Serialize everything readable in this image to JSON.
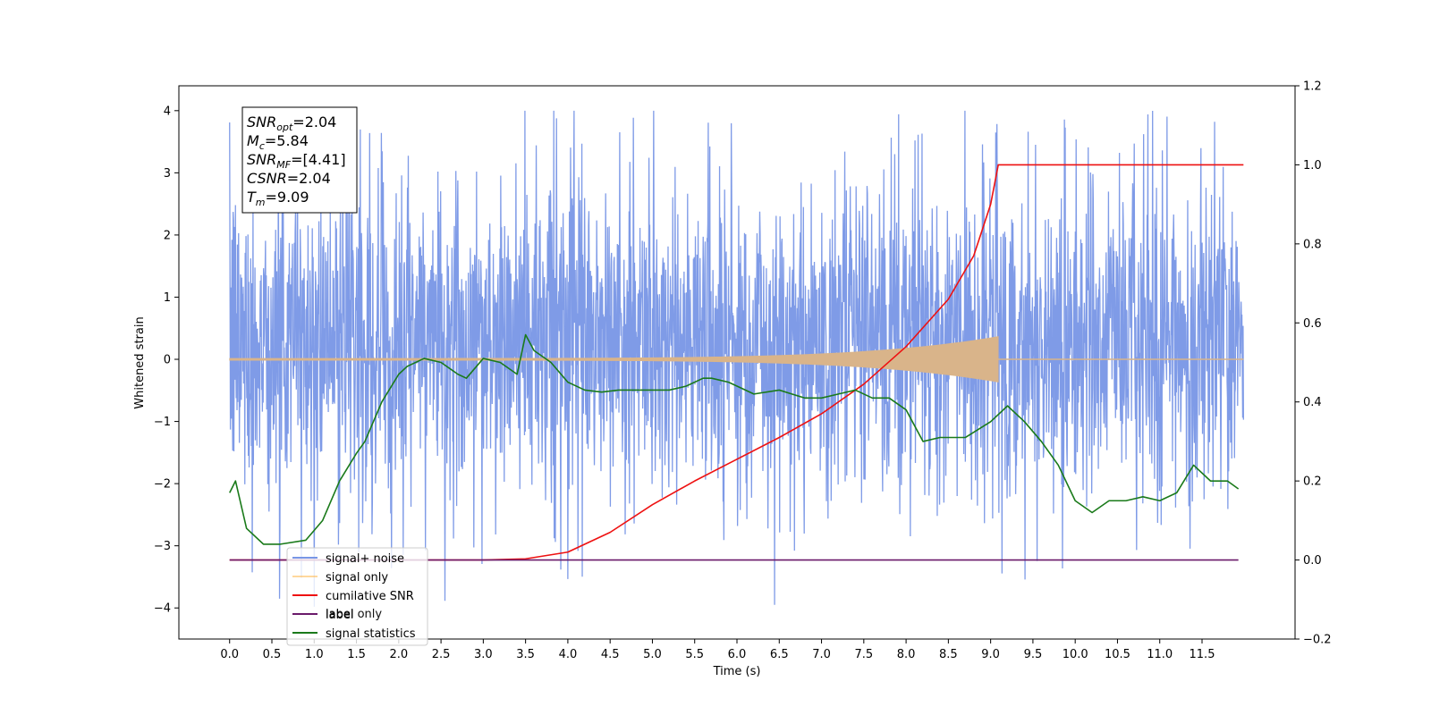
{
  "chart_data": {
    "type": "line",
    "title": "",
    "xlabel": "Time (s)",
    "ylabel_left": "Whitened strain",
    "ylabel_right": "",
    "xlim": [
      -0.6,
      12.6
    ],
    "ylim_left": [
      -4.5,
      4.4
    ],
    "ylim_right": [
      -0.2,
      1.2
    ],
    "x_ticks": [
      "0.0",
      "0.5",
      "1.0",
      "1.5",
      "2.0",
      "2.5",
      "3.0",
      "3.5",
      "4.0",
      "4.5",
      "5.0",
      "5.5",
      "6.0",
      "6.5",
      "7.0",
      "7.5",
      "8.0",
      "8.5",
      "9.0",
      "9.5",
      "10.0",
      "10.5",
      "11.0",
      "11.5"
    ],
    "y_left_ticks": [
      "4",
      "3",
      "2",
      "1",
      "0",
      "−1",
      "−2",
      "−3",
      "−4"
    ],
    "y_right_ticks": [
      "1.2",
      "1.0",
      "0.8",
      "0.6",
      "0.4",
      "0.2",
      "0.0",
      "−0.2"
    ],
    "grid": false,
    "legend_placement": "lower-left",
    "annotation": {
      "lines": [
        {
          "sym": "SNR",
          "sub": "opt",
          "value": "=2.04"
        },
        {
          "sym": "M",
          "sub": "c",
          "value": "=5.84"
        },
        {
          "sym": "SNR",
          "sub": "MF",
          "value": "=[4.41]"
        },
        {
          "sym": "CSNR",
          "sub": "",
          "value": "=2.04"
        },
        {
          "sym": "T",
          "sub": "m",
          "value": "=9.09"
        }
      ]
    },
    "series": [
      {
        "name": "signal+ noise",
        "axis": "left",
        "color": "#7896e6",
        "kind": "noise",
        "x_range": [
          0.0,
          11.99
        ],
        "mean": 0.0,
        "typical_range": [
          -2.0,
          2.6
        ],
        "extremes": [
          -4.1,
          4.0
        ]
      },
      {
        "name": "signal only",
        "axis": "left",
        "color": "#d9b48a",
        "kind": "chirp",
        "x_range": [
          0.0,
          9.09
        ],
        "end_amplitude": 0.35
      },
      {
        "name": "cumilative SNR",
        "axis": "right",
        "color": "#ee1111",
        "x": [
          0.0,
          3.0,
          3.5,
          4.0,
          4.5,
          5.0,
          5.5,
          6.0,
          6.5,
          7.0,
          7.5,
          8.0,
          8.5,
          8.8,
          9.0,
          9.09,
          10.0,
          11.0,
          11.99
        ],
        "values": [
          0.0,
          0.0,
          0.003,
          0.02,
          0.07,
          0.14,
          0.2,
          0.255,
          0.31,
          0.37,
          0.445,
          0.54,
          0.66,
          0.77,
          0.9,
          1.0,
          1.0,
          1.0,
          1.0
        ]
      },
      {
        "name": "label",
        "axis": "right",
        "color": "#6a1a6a",
        "x": [
          0.0,
          11.93
        ],
        "values": [
          0.0,
          0.0
        ]
      },
      {
        "name": "label only",
        "axis": "right",
        "color": "#dddddd",
        "x": [],
        "values": []
      },
      {
        "name": "signal statistics",
        "axis": "right",
        "color": "#1a7a1a",
        "x": [
          0.0,
          0.07,
          0.2,
          0.4,
          0.6,
          0.9,
          1.1,
          1.3,
          1.5,
          1.6,
          1.8,
          2.0,
          2.1,
          2.3,
          2.5,
          2.7,
          2.8,
          3.0,
          3.2,
          3.4,
          3.5,
          3.6,
          3.8,
          4.0,
          4.2,
          4.4,
          4.6,
          4.8,
          5.0,
          5.2,
          5.4,
          5.6,
          5.7,
          5.9,
          6.0,
          6.2,
          6.5,
          6.8,
          7.0,
          7.2,
          7.4,
          7.6,
          7.8,
          8.0,
          8.2,
          8.4,
          8.7,
          9.0,
          9.2,
          9.4,
          9.6,
          9.8,
          10.0,
          10.2,
          10.4,
          10.6,
          10.8,
          11.0,
          11.2,
          11.4,
          11.6,
          11.8,
          11.93
        ],
        "values": [
          0.17,
          0.2,
          0.08,
          0.04,
          0.04,
          0.05,
          0.1,
          0.2,
          0.27,
          0.3,
          0.4,
          0.47,
          0.49,
          0.51,
          0.5,
          0.47,
          0.46,
          0.51,
          0.5,
          0.47,
          0.57,
          0.53,
          0.5,
          0.45,
          0.43,
          0.425,
          0.43,
          0.43,
          0.43,
          0.43,
          0.44,
          0.46,
          0.46,
          0.45,
          0.44,
          0.42,
          0.43,
          0.41,
          0.41,
          0.42,
          0.43,
          0.41,
          0.41,
          0.38,
          0.3,
          0.31,
          0.31,
          0.35,
          0.39,
          0.35,
          0.3,
          0.24,
          0.15,
          0.12,
          0.15,
          0.15,
          0.16,
          0.15,
          0.17,
          0.24,
          0.2,
          0.2,
          0.18
        ]
      }
    ]
  }
}
